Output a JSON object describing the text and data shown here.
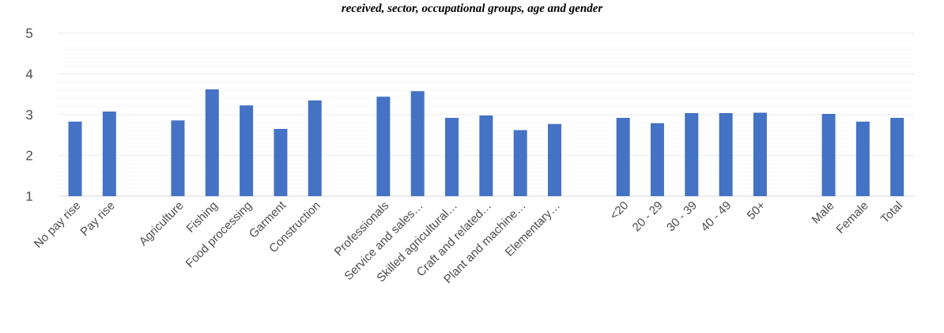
{
  "chart_data": {
    "type": "bar",
    "title": "received, sector, occupational groups, age and gender",
    "categories": [
      "No pay rise",
      "Pay rise",
      null,
      "Agriculture",
      "Fishing",
      "Food processing",
      "Garment",
      "Construction",
      null,
      "Professionals",
      "Service and sales…",
      "Skilled agricultural…",
      "Craft and related…",
      "Plant and machine…",
      "Elementary…",
      null,
      "<20",
      "20 - 29",
      "30 - 39",
      "40 - 49",
      "50+",
      null,
      "Male",
      "Female",
      "Total"
    ],
    "values": [
      2.83,
      3.08,
      null,
      2.86,
      3.62,
      3.23,
      2.65,
      3.35,
      null,
      3.44,
      3.58,
      2.92,
      2.98,
      2.62,
      2.77,
      null,
      2.92,
      2.79,
      3.04,
      3.04,
      3.05,
      null,
      3.02,
      2.83,
      2.92
    ],
    "color": "#4472c4",
    "ylim": [
      1,
      5
    ],
    "yticks": [
      1,
      2,
      3,
      4,
      5
    ],
    "grid": "y"
  }
}
